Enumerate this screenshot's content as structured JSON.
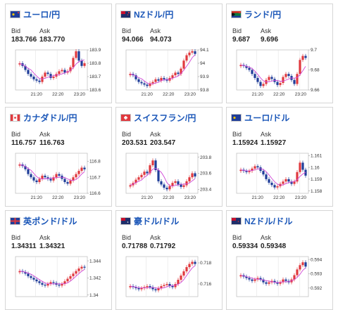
{
  "colors": {
    "title": "#1a56b8",
    "up_candle": "#e0393e",
    "down_candle": "#1f3d99",
    "moving_average": "#d046d6",
    "border": "#d6d6d6"
  },
  "labels": {
    "bid": "Bid",
    "ask": "Ask"
  },
  "cards": [
    {
      "title": "ユーロ/円",
      "flag": "eu-jp-flag-icon",
      "bid": "183.766",
      "ask": "183.770",
      "yticks": [
        "183.9",
        "183.8",
        "183.7",
        "183.6"
      ],
      "xticks": [
        "21:20",
        "22:20",
        "23:20"
      ],
      "series": [
        183.8,
        183.78,
        183.75,
        183.72,
        183.7,
        183.68,
        183.67,
        183.66,
        183.7,
        183.73,
        183.72,
        183.69,
        183.7,
        183.72,
        183.74,
        183.75,
        183.73,
        183.74,
        183.77,
        183.84,
        183.89,
        183.82,
        183.78,
        183.8
      ],
      "yrange": [
        183.6,
        183.9
      ]
    },
    {
      "title": "NZドル/円",
      "flag": "nz-jp-flag-icon",
      "bid": "94.066",
      "ask": "94.073",
      "yticks": [
        "94.1",
        "94",
        "93.9",
        "93.8"
      ],
      "xticks": [
        "21:20",
        "22:20",
        "23:20"
      ],
      "series": [
        93.92,
        93.91,
        93.88,
        93.86,
        93.85,
        93.84,
        93.83,
        93.85,
        93.86,
        93.88,
        93.87,
        93.89,
        93.88,
        93.87,
        93.89,
        93.91,
        93.93,
        93.92,
        93.96,
        94.02,
        94.06,
        94.08,
        94.09,
        94.07
      ],
      "yrange": [
        93.8,
        94.1
      ]
    },
    {
      "title": "ランド/円",
      "flag": "za-jp-flag-icon",
      "bid": "9.687",
      "ask": "9.696",
      "yticks": [
        "9.7",
        "9.68",
        "9.66"
      ],
      "xticks": [
        "21:20",
        "22:20",
        "23:20"
      ],
      "series": [
        9.685,
        9.684,
        9.682,
        9.68,
        9.676,
        9.672,
        9.668,
        9.664,
        9.666,
        9.67,
        9.673,
        9.671,
        9.668,
        9.665,
        9.667,
        9.673,
        9.676,
        9.674,
        9.67,
        9.666,
        9.676,
        9.69,
        9.694,
        9.692
      ],
      "yrange": [
        9.66,
        9.7
      ]
    },
    {
      "title": "カナダドル/円",
      "flag": "ca-jp-flag-icon",
      "bid": "116.757",
      "ask": "116.763",
      "yticks": [
        "116.8",
        "116.7",
        "116.6"
      ],
      "xticks": [
        "21:20",
        "22:20",
        "23:20"
      ],
      "series": [
        116.78,
        116.77,
        116.75,
        116.72,
        116.7,
        116.68,
        116.67,
        116.69,
        116.71,
        116.7,
        116.69,
        116.68,
        116.7,
        116.72,
        116.71,
        116.69,
        116.67,
        116.66,
        116.68,
        116.7,
        116.72,
        116.74,
        116.76,
        116.75
      ],
      "yrange": [
        116.6,
        116.85
      ]
    },
    {
      "title": "スイスフラン/円",
      "flag": "ch-jp-flag-icon",
      "bid": "203.531",
      "ask": "203.547",
      "yticks": [
        "203.8",
        "203.6",
        "203.4"
      ],
      "xticks": [
        "21:20",
        "22:20",
        "23:20"
      ],
      "series": [
        203.45,
        203.48,
        203.52,
        203.55,
        203.58,
        203.62,
        203.6,
        203.7,
        203.76,
        203.64,
        203.5,
        203.46,
        203.42,
        203.4,
        203.44,
        203.48,
        203.5,
        203.46,
        203.43,
        203.45,
        203.5,
        203.55,
        203.6,
        203.56
      ],
      "yrange": [
        203.35,
        203.85
      ]
    },
    {
      "title": "ユーロ/ドル",
      "flag": "eu-us-flag-icon",
      "bid": "1.15924",
      "ask": "1.15927",
      "yticks": [
        "1.161",
        "1.16",
        "1.159",
        "1.158"
      ],
      "xticks": [
        "21:20",
        "22:20",
        "23:20"
      ],
      "series": [
        1.1598,
        1.1597,
        1.1596,
        1.1597,
        1.1599,
        1.1601,
        1.16,
        1.1597,
        1.1594,
        1.159,
        1.1587,
        1.1585,
        1.1583,
        1.1584,
        1.1586,
        1.1588,
        1.159,
        1.1588,
        1.1586,
        1.1588,
        1.1596,
        1.1604,
        1.1598,
        1.1593
      ],
      "yrange": [
        1.1578,
        1.1612
      ]
    },
    {
      "title": "英ポンド/ドル",
      "flag": "gb-us-flag-icon",
      "bid": "1.34311",
      "ask": "1.34321",
      "yticks": [
        "1.344",
        "1.342",
        "1.34"
      ],
      "xticks": [],
      "series": [
        1.3428,
        1.3427,
        1.3425,
        1.3422,
        1.342,
        1.3418,
        1.3416,
        1.3414,
        1.3412,
        1.3411,
        1.3413,
        1.3415,
        1.3414,
        1.3412,
        1.3411,
        1.3413,
        1.3416,
        1.3419,
        1.3422,
        1.3425,
        1.3428,
        1.3431,
        1.3433,
        1.3432
      ],
      "yrange": [
        1.3398,
        1.3445
      ]
    },
    {
      "title": "豪ドル/ドル",
      "flag": "au-us-flag-icon",
      "bid": "0.71788",
      "ask": "0.71792",
      "yticks": [
        "0.718",
        "0.716"
      ],
      "xticks": [],
      "series": [
        0.7158,
        0.7157,
        0.7156,
        0.7155,
        0.7156,
        0.7157,
        0.7158,
        0.7157,
        0.7155,
        0.7154,
        0.7156,
        0.7158,
        0.7159,
        0.716,
        0.7158,
        0.7157,
        0.716,
        0.7164,
        0.7168,
        0.7172,
        0.7176,
        0.7179,
        0.7181,
        0.7179
      ],
      "yrange": [
        0.7148,
        0.7186
      ]
    },
    {
      "title": "NZドル/ドル",
      "flag": "nz-us-flag-icon",
      "bid": "0.59334",
      "ask": "0.59348",
      "yticks": [
        "0.594",
        "0.593",
        "0.592"
      ],
      "xticks": [],
      "series": [
        0.5929,
        0.5928,
        0.5927,
        0.5926,
        0.5925,
        0.5926,
        0.5927,
        0.5926,
        0.5924,
        0.5923,
        0.5924,
        0.5925,
        0.5924,
        0.5923,
        0.5924,
        0.5926,
        0.5925,
        0.5924,
        0.5926,
        0.5929,
        0.5933,
        0.5936,
        0.5938,
        0.5935
      ],
      "yrange": [
        0.5914,
        0.5942
      ]
    }
  ]
}
